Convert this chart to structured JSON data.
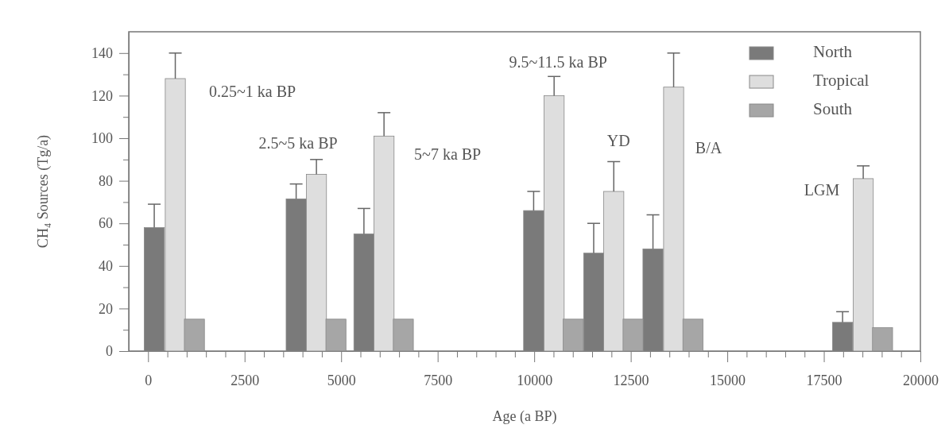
{
  "chart_data": {
    "type": "bar",
    "xlabel": "Age (a  BP)",
    "ylabel": "CH₄ Sources (Tg/a)",
    "xlim": [
      -500,
      20000
    ],
    "ylim": [
      0,
      150
    ],
    "xticks": [
      0,
      {
        "value": 500,
        "label": null
      },
      {
        "value": 1000,
        "label": null
      },
      {
        "value": 1500,
        "label": null
      },
      {
        "value": 2000,
        "label": null
      },
      2500,
      {
        "value": 3000,
        "label": null
      },
      {
        "value": 3500,
        "label": null
      },
      {
        "value": 4000,
        "label": null
      },
      {
        "value": 4500,
        "label": null
      },
      5000,
      {
        "value": 5500,
        "label": null
      },
      {
        "value": 6000,
        "label": null
      },
      {
        "value": 6500,
        "label": null
      },
      {
        "value": 7000,
        "label": null
      },
      7500,
      {
        "value": 8000,
        "label": null
      },
      {
        "value": 8500,
        "label": null
      },
      {
        "value": 9000,
        "label": null
      },
      {
        "value": 9500,
        "label": null
      },
      10000,
      {
        "value": 10500,
        "label": null
      },
      {
        "value": 11000,
        "label": null
      },
      {
        "value": 11500,
        "label": null
      },
      {
        "value": 12000,
        "label": null
      },
      12500,
      {
        "value": 13000,
        "label": null
      },
      {
        "value": 13500,
        "label": null
      },
      {
        "value": 14000,
        "label": null
      },
      {
        "value": 14500,
        "label": null
      },
      15000,
      {
        "value": 15500,
        "label": null
      },
      {
        "value": 16000,
        "label": null
      },
      {
        "value": 16500,
        "label": null
      },
      {
        "value": 17000,
        "label": null
      },
      17500,
      {
        "value": 18000,
        "label": null
      },
      {
        "value": 18500,
        "label": null
      },
      {
        "value": 19000,
        "label": null
      },
      {
        "value": 19500,
        "label": null
      },
      20000
    ],
    "yticks": [
      0,
      {
        "value": 10,
        "label": null
      },
      20,
      {
        "value": 30,
        "label": null
      },
      40,
      {
        "value": 50,
        "label": null
      },
      60,
      {
        "value": 70,
        "label": null
      },
      80,
      {
        "value": 90,
        "label": null
      },
      100,
      {
        "value": 110,
        "label": null
      },
      120,
      {
        "value": 130,
        "label": null
      },
      140
    ],
    "legend": "top right",
    "grid": false,
    "series": [
      {
        "name": "North",
        "color": "#7a7a7a",
        "x": [
          160,
          3835,
          5590,
          9985,
          11540,
          13075,
          17985
        ],
        "values": [
          58,
          71.5,
          55,
          66,
          46,
          48,
          13.5
        ],
        "errors": [
          [
            58,
            69
          ],
          [
            71.5,
            78.5
          ],
          [
            55,
            67
          ],
          [
            66,
            75
          ],
          [
            46,
            60
          ],
          [
            48,
            64
          ],
          [
            13.5,
            18.5
          ]
        ]
      },
      {
        "name": "Tropical",
        "color": "#dedede",
        "x": [
          705,
          4360,
          6110,
          10515,
          12060,
          13610,
          18520
        ],
        "values": [
          128,
          83,
          101,
          120,
          75,
          124,
          81
        ],
        "errors": [
          [
            128,
            140
          ],
          [
            83,
            90
          ],
          [
            101,
            112
          ],
          [
            120,
            129
          ],
          [
            75,
            89
          ],
          [
            124,
            140
          ],
          [
            81,
            87
          ]
        ]
      },
      {
        "name": "South",
        "color": "#a6a6a6",
        "x": [
          1200,
          4865,
          6610,
          11010,
          12560,
          14110,
          19020
        ],
        "values": [
          15,
          15,
          15,
          15,
          15,
          15,
          11
        ]
      }
    ],
    "annotations": [
      "0.25~1 ka BP",
      "2.5~5 ka BP",
      "5~7 ka BP",
      "9.5~11.5 ka BP",
      "YD",
      "B/A",
      "LGM"
    ]
  }
}
